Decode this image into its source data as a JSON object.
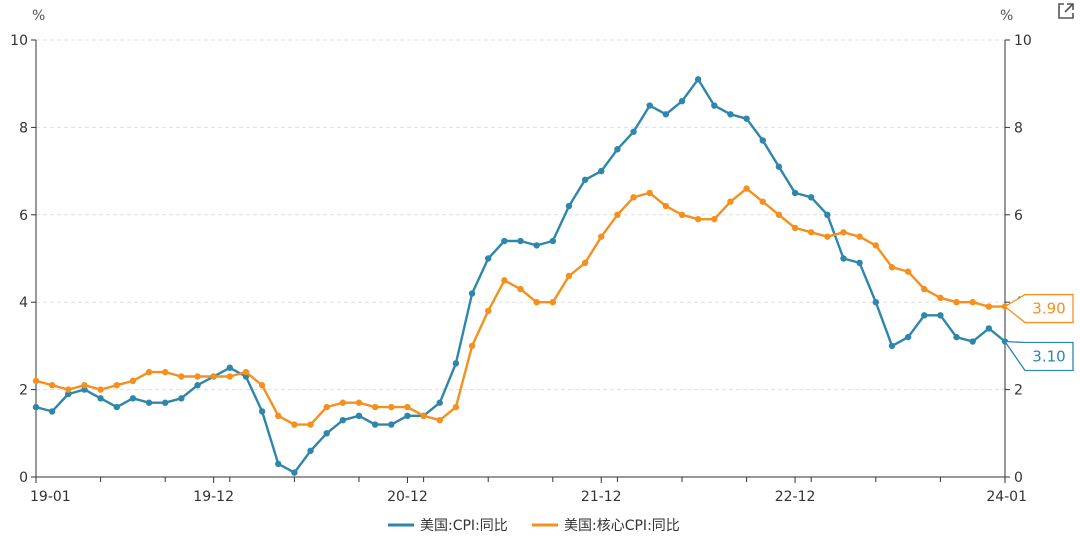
{
  "chart_data": {
    "type": "line",
    "x": [
      "19-01",
      "19-02",
      "19-03",
      "19-04",
      "19-05",
      "19-06",
      "19-07",
      "19-08",
      "19-09",
      "19-10",
      "19-11",
      "19-12",
      "20-01",
      "20-02",
      "20-03",
      "20-04",
      "20-05",
      "20-06",
      "20-07",
      "20-08",
      "20-09",
      "20-10",
      "20-11",
      "20-12",
      "21-01",
      "21-02",
      "21-03",
      "21-04",
      "21-05",
      "21-06",
      "21-07",
      "21-08",
      "21-09",
      "21-10",
      "21-11",
      "21-12",
      "22-01",
      "22-02",
      "22-03",
      "22-04",
      "22-05",
      "22-06",
      "22-07",
      "22-08",
      "22-09",
      "22-10",
      "22-11",
      "22-12",
      "23-01",
      "23-02",
      "23-03",
      "23-04",
      "23-05",
      "23-06",
      "23-07",
      "23-08",
      "23-09",
      "23-10",
      "23-11",
      "23-12",
      "24-01"
    ],
    "x_ticks": [
      "19-01",
      "19-12",
      "20-12",
      "21-12",
      "22-12",
      "24-01"
    ],
    "y_ticks": [
      "0",
      "2",
      "4",
      "6",
      "8",
      "10"
    ],
    "ylim": [
      0,
      10
    ],
    "y_unit_left": "%",
    "y_unit_right": "%",
    "grid": true,
    "legend_position": "bottom",
    "series": [
      {
        "name": "美国:CPI:同比",
        "color": "#2e86ab",
        "values": [
          1.6,
          1.5,
          1.9,
          2.0,
          1.8,
          1.6,
          1.8,
          1.7,
          1.7,
          1.8,
          2.1,
          2.3,
          2.5,
          2.3,
          1.5,
          0.3,
          0.1,
          0.6,
          1.0,
          1.3,
          1.4,
          1.2,
          1.2,
          1.4,
          1.4,
          1.7,
          2.6,
          4.2,
          5.0,
          5.4,
          5.4,
          5.3,
          5.4,
          6.2,
          6.8,
          7.0,
          7.5,
          7.9,
          8.5,
          8.3,
          8.6,
          9.1,
          8.5,
          8.3,
          8.2,
          7.7,
          7.1,
          6.5,
          6.4,
          6.0,
          5.0,
          4.9,
          4.0,
          3.0,
          3.2,
          3.7,
          3.7,
          3.2,
          3.1,
          3.4,
          3.1
        ],
        "last_label": "3.10"
      },
      {
        "name": "美国:核心CPI:同比",
        "color": "#f5901e",
        "values": [
          2.2,
          2.1,
          2.0,
          2.1,
          2.0,
          2.1,
          2.2,
          2.4,
          2.4,
          2.3,
          2.3,
          2.3,
          2.3,
          2.4,
          2.1,
          1.4,
          1.2,
          1.2,
          1.6,
          1.7,
          1.7,
          1.6,
          1.6,
          1.6,
          1.4,
          1.3,
          1.6,
          3.0,
          3.8,
          4.5,
          4.3,
          4.0,
          4.0,
          4.6,
          4.9,
          5.5,
          6.0,
          6.4,
          6.5,
          6.2,
          6.0,
          5.9,
          5.9,
          6.3,
          6.6,
          6.3,
          6.0,
          5.7,
          5.6,
          5.5,
          5.6,
          5.5,
          5.3,
          4.8,
          4.7,
          4.3,
          4.1,
          4.0,
          4.0,
          3.9,
          3.9
        ],
        "last_label": "3.90"
      }
    ]
  },
  "toolbar": {
    "export_icon": "external-link-icon"
  }
}
